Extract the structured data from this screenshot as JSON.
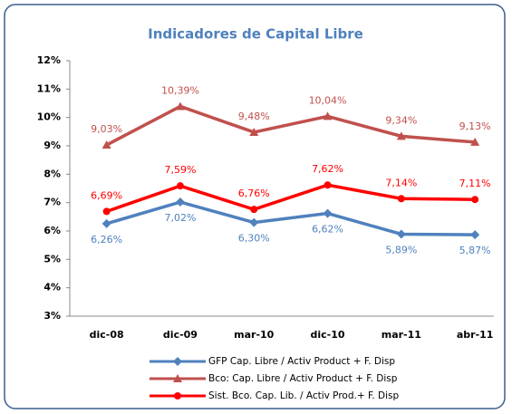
{
  "chart_data": {
    "type": "line",
    "title": "Indicadores de Capital Libre",
    "categories": [
      "dic-08",
      "dic-09",
      "mar-10",
      "dic-10",
      "mar-11",
      "abr-11"
    ],
    "ylim": [
      3,
      12
    ],
    "yticks": [
      {
        "value": 3,
        "label": "3%"
      },
      {
        "value": 4,
        "label": "4%"
      },
      {
        "value": 5,
        "label": "5%"
      },
      {
        "value": 6,
        "label": "6%"
      },
      {
        "value": 7,
        "label": "7%"
      },
      {
        "value": 8,
        "label": "8%"
      },
      {
        "value": 9,
        "label": "9%"
      },
      {
        "value": 10,
        "label": "10%"
      },
      {
        "value": 11,
        "label": "11%"
      },
      {
        "value": 12,
        "label": "12%"
      }
    ],
    "grid": false,
    "series": [
      {
        "name": "GFP Cap. Libre / Activ Product  + F. Disp",
        "color": "#4f81bd",
        "marker": "diamond",
        "values": [
          6.26,
          7.02,
          6.3,
          6.62,
          5.89,
          5.87
        ],
        "value_labels": [
          "6,26%",
          "7,02%",
          "6,30%",
          "6,62%",
          "5,89%",
          "5,87%"
        ]
      },
      {
        "name": "Bco: Cap. Libre / Activ Product  + F. Disp",
        "color": "#c0504d",
        "marker": "triangle",
        "values": [
          9.03,
          10.39,
          9.48,
          10.04,
          9.34,
          9.13
        ],
        "value_labels": [
          "9,03%",
          "10,39%",
          "9,48%",
          "10,04%",
          "9,34%",
          "9,13%"
        ]
      },
      {
        "name": "Sist. Bco. Cap. Lib. / Activ Prod.+  F. Disp",
        "color": "#ff0000",
        "marker": "circle",
        "values": [
          6.69,
          7.59,
          6.76,
          7.62,
          7.14,
          7.11
        ],
        "value_labels": [
          "6,69%",
          "7,59%",
          "6,76%",
          "7,62%",
          "7,14%",
          "7,11%"
        ]
      }
    ]
  }
}
